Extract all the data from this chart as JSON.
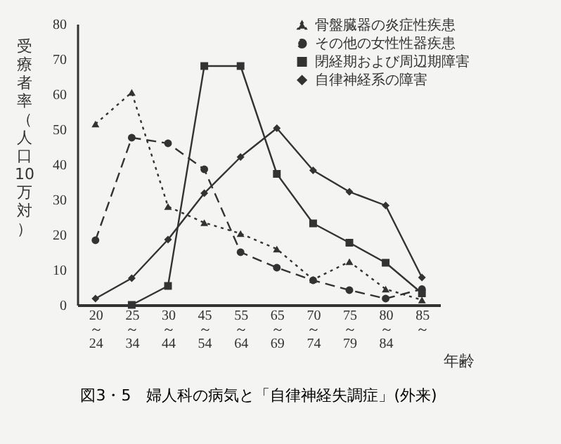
{
  "chart_data": {
    "type": "line",
    "title": "図3・5　婦人科の病気と「自律神経失調症」(外来)",
    "xlabel": "年齢",
    "ylabel": "受療者率（人口10万対）",
    "categories": [
      "20\n～\n24",
      "25\n～\n34",
      "30\n～\n44",
      "45\n～\n54",
      "55\n～\n64",
      "65\n～\n69",
      "70\n～\n74",
      "75\n～\n79",
      "80\n～\n84",
      "85\n～"
    ],
    "series": [
      {
        "name": "骨盤臓器の炎症性疾患",
        "color": "#333333",
        "marker": "triangle",
        "line_style": "dotted",
        "values": [
          51.5,
          60.5,
          28,
          23.4,
          20.3,
          15.9,
          7.2,
          12.3,
          4.5,
          1.4
        ]
      },
      {
        "name": "その他の女性性器疾患",
        "color": "#333333",
        "marker": "circle",
        "line_style": "dashed",
        "values": [
          18.4,
          47.6,
          46,
          38.6,
          15,
          10.6,
          7,
          4.2,
          1.8,
          4.5
        ]
      },
      {
        "name": "閉経期および周辺期障害",
        "color": "#333333",
        "marker": "square",
        "line_style": "solid",
        "values": [
          null,
          0,
          5.4,
          68,
          68,
          37.3,
          23.2,
          17.7,
          12,
          3.3
        ]
      },
      {
        "name": "自律神経系の障害",
        "color": "#333333",
        "marker": "diamond",
        "line_style": "solid",
        "values": [
          1.8,
          7.6,
          18.6,
          31.8,
          42.1,
          50.3,
          38.3,
          32.2,
          28.3,
          7.8
        ]
      }
    ],
    "ylim": [
      0,
      80
    ],
    "yticks": [
      0,
      10,
      20,
      30,
      40,
      50,
      60,
      70,
      80
    ],
    "grid": false,
    "legend": "top right"
  }
}
